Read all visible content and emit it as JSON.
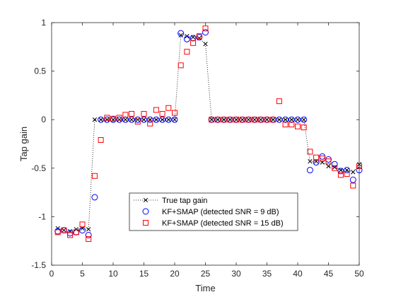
{
  "chart_data": {
    "type": "scatter",
    "title": "",
    "xlabel": "Time",
    "ylabel": "Tap gain",
    "xlim": [
      0,
      50
    ],
    "ylim": [
      -1.5,
      1
    ],
    "xticks": [
      0,
      5,
      10,
      15,
      20,
      25,
      30,
      35,
      40,
      45,
      50
    ],
    "yticks": [
      -1.5,
      -1,
      -0.5,
      0,
      0.5,
      1
    ],
    "grid": false,
    "legend_position": "bottom-center",
    "x": [
      1,
      2,
      3,
      4,
      5,
      6,
      7,
      8,
      9,
      10,
      11,
      12,
      13,
      14,
      15,
      16,
      17,
      18,
      19,
      20,
      21,
      22,
      23,
      24,
      25,
      26,
      27,
      28,
      29,
      30,
      31,
      32,
      33,
      34,
      35,
      36,
      37,
      38,
      39,
      40,
      41,
      42,
      43,
      44,
      45,
      46,
      47,
      48,
      49,
      50
    ],
    "series": [
      {
        "name": "True tap gain",
        "marker": "x",
        "line": "dotted",
        "color": "#000000",
        "values": [
          -1.12,
          -1.14,
          -1.15,
          -1.13,
          -1.12,
          -1.13,
          0,
          0,
          0,
          0,
          0,
          0,
          0,
          0,
          0,
          0,
          0,
          0,
          0,
          0,
          0.87,
          0.86,
          0.85,
          0.84,
          0.78,
          0,
          0,
          0,
          0,
          0,
          0,
          0,
          0,
          0,
          0,
          0,
          0,
          0,
          0,
          0,
          0,
          -0.43,
          -0.43,
          -0.44,
          -0.48,
          -0.49,
          -0.52,
          -0.52,
          -0.54,
          -0.46
        ]
      },
      {
        "name": "KF+SMAP (detected SNR = 9 dB)",
        "marker": "circle",
        "color": "#0000ff",
        "values": [
          -1.15,
          -1.14,
          -1.17,
          -1.16,
          -1.14,
          -1.19,
          -0.8,
          0,
          0,
          0,
          0,
          0,
          0,
          0,
          0,
          0,
          0,
          0,
          0,
          0,
          0.89,
          0.83,
          0.84,
          0.85,
          0.9,
          0,
          0,
          0,
          0,
          0,
          0,
          0,
          0,
          0,
          0,
          0,
          0,
          0,
          0,
          0,
          0,
          -0.52,
          -0.44,
          -0.38,
          -0.41,
          -0.46,
          -0.53,
          -0.52,
          -0.62,
          -0.52
        ]
      },
      {
        "name": "KF+SMAP (detected SNR = 15 dB)",
        "marker": "square",
        "color": "#ff0000",
        "values": [
          -1.16,
          -1.14,
          -1.19,
          -1.16,
          -1.08,
          -1.23,
          -0.58,
          -0.21,
          0.02,
          0.01,
          0.02,
          0.05,
          0.06,
          -0.02,
          0.06,
          -0.04,
          0.1,
          0.06,
          0.12,
          0.07,
          0.56,
          0.7,
          0.79,
          0.86,
          0.94,
          0,
          0,
          0,
          0,
          0,
          0,
          0,
          0,
          0,
          0,
          0,
          0.19,
          -0.05,
          -0.05,
          -0.07,
          -0.08,
          -0.33,
          -0.39,
          -0.4,
          -0.43,
          -0.5,
          -0.57,
          -0.56,
          -0.68,
          -0.48
        ]
      }
    ]
  }
}
